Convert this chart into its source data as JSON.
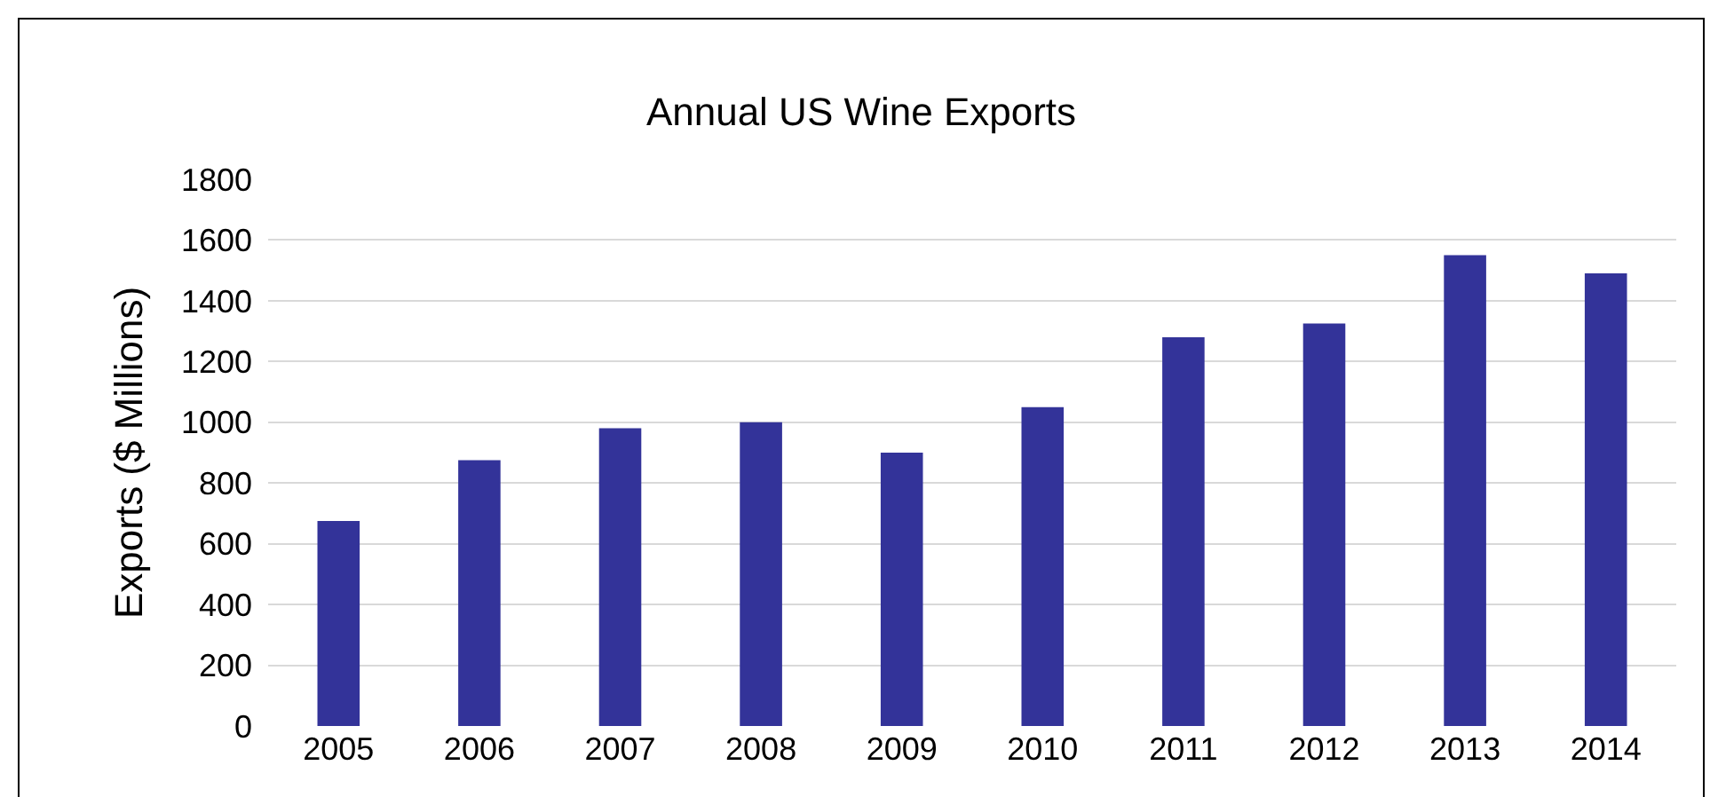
{
  "chart_data": {
    "type": "bar",
    "title": "Annual US Wine Exports",
    "ylabel": "Exports ($ Millions)",
    "categories": [
      "2005",
      "2006",
      "2007",
      "2008",
      "2009",
      "2010",
      "2011",
      "2012",
      "2013",
      "2014"
    ],
    "values": [
      675,
      875,
      980,
      1000,
      900,
      1050,
      1280,
      1325,
      1550,
      1490
    ],
    "color": "#333399",
    "ylim": [
      0,
      1800
    ],
    "yticks": [
      0,
      200,
      400,
      600,
      800,
      1000,
      1200,
      1400,
      1600,
      1800
    ],
    "grid": "y"
  }
}
